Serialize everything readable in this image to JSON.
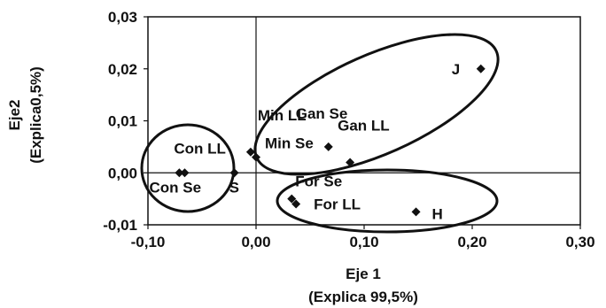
{
  "chart_data": {
    "type": "scatter",
    "xlabel": "Eje 1",
    "xlabel_sub": "(Explica 99,5%)",
    "ylabel": "Eje2",
    "ylabel_sub": "(Explica0,5%)",
    "xlim": [
      -0.1,
      0.3
    ],
    "ylim": [
      -0.01,
      0.03
    ],
    "x_ticks": [
      -0.1,
      0.0,
      0.1,
      0.2,
      0.3
    ],
    "x_tick_labels": [
      "-0,10",
      "0,00",
      "0,10",
      "0,20",
      "0,30"
    ],
    "y_ticks": [
      -0.01,
      0.0,
      0.01,
      0.02,
      0.03
    ],
    "y_tick_labels": [
      "-0,01",
      "0,00",
      "0,01",
      "0,02",
      "0,03"
    ],
    "grid": false,
    "points": [
      {
        "label": "Con LL",
        "x": -0.071,
        "y": 0.0
      },
      {
        "label": "Con Se",
        "x": -0.066,
        "y": 0.0
      },
      {
        "label": "S",
        "x": -0.02,
        "y": 0.0
      },
      {
        "label": "Min LL",
        "x": -0.005,
        "y": 0.004
      },
      {
        "label": "Min Se",
        "x": 0.0,
        "y": 0.003
      },
      {
        "label": "Gan Se",
        "x": 0.067,
        "y": 0.005
      },
      {
        "label": "Gan LL",
        "x": 0.087,
        "y": 0.002
      },
      {
        "label": "J",
        "x": 0.208,
        "y": 0.02
      },
      {
        "label": "For Se",
        "x": 0.033,
        "y": -0.005
      },
      {
        "label": "For LL",
        "x": 0.037,
        "y": -0.006
      },
      {
        "label": "H",
        "x": 0.148,
        "y": -0.0075
      }
    ],
    "ellipses": [
      {
        "name": "group-con",
        "members": [
          "Con LL",
          "Con Se",
          "S"
        ]
      },
      {
        "name": "group-gan-min-j",
        "members": [
          "Min LL",
          "Min Se",
          "Gan Se",
          "Gan LL",
          "J"
        ]
      },
      {
        "name": "group-for-h",
        "members": [
          "For Se",
          "For LL",
          "H"
        ]
      }
    ]
  }
}
